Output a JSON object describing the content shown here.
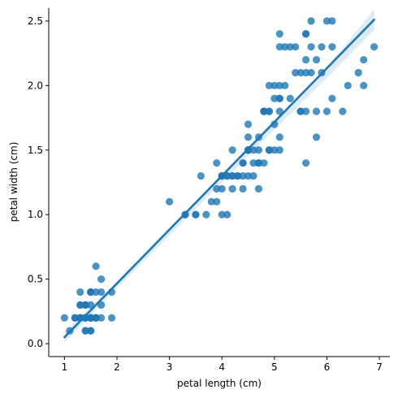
{
  "chart_data": {
    "type": "scatter",
    "title": "",
    "xlabel": "petal length (cm)",
    "ylabel": "petal width (cm)",
    "xlim": [
      0.7,
      7.2
    ],
    "ylim": [
      -0.1,
      2.6
    ],
    "xticks": [
      1,
      2,
      3,
      4,
      5,
      6,
      7
    ],
    "yticks": [
      0.0,
      0.5,
      1.0,
      1.5,
      2.0,
      2.5
    ],
    "xtick_labels": [
      "1",
      "2",
      "3",
      "4",
      "5",
      "6",
      "7"
    ],
    "ytick_labels": [
      "0.0",
      "0.5",
      "1.0",
      "1.5",
      "2.0",
      "2.5"
    ],
    "grid": false,
    "colors": {
      "points": "#1f77b4",
      "regression_line": "#1f77b4",
      "confidence_band": "#1f77b4"
    },
    "regression": {
      "x": [
        1.0,
        6.9
      ],
      "y": [
        0.05,
        2.51
      ]
    },
    "confidence_band": {
      "x": [
        1.0,
        2.0,
        3.0,
        4.0,
        5.0,
        6.0,
        6.9
      ],
      "upper": [
        0.09,
        0.48,
        0.88,
        1.29,
        1.71,
        2.14,
        2.59
      ],
      "lower": [
        0.01,
        0.43,
        0.84,
        1.25,
        1.66,
        2.06,
        2.43
      ]
    },
    "points": [
      [
        1.4,
        0.2
      ],
      [
        1.4,
        0.2
      ],
      [
        1.3,
        0.2
      ],
      [
        1.5,
        0.2
      ],
      [
        1.4,
        0.2
      ],
      [
        1.7,
        0.4
      ],
      [
        1.4,
        0.3
      ],
      [
        1.5,
        0.2
      ],
      [
        1.4,
        0.2
      ],
      [
        1.5,
        0.1
      ],
      [
        1.5,
        0.2
      ],
      [
        1.6,
        0.2
      ],
      [
        1.4,
        0.1
      ],
      [
        1.1,
        0.1
      ],
      [
        1.2,
        0.2
      ],
      [
        1.5,
        0.4
      ],
      [
        1.3,
        0.4
      ],
      [
        1.4,
        0.3
      ],
      [
        1.7,
        0.3
      ],
      [
        1.5,
        0.3
      ],
      [
        1.7,
        0.2
      ],
      [
        1.5,
        0.4
      ],
      [
        1.0,
        0.2
      ],
      [
        1.7,
        0.5
      ],
      [
        1.9,
        0.2
      ],
      [
        1.6,
        0.2
      ],
      [
        1.6,
        0.4
      ],
      [
        1.5,
        0.2
      ],
      [
        1.4,
        0.2
      ],
      [
        1.6,
        0.2
      ],
      [
        1.6,
        0.2
      ],
      [
        1.5,
        0.4
      ],
      [
        1.5,
        0.1
      ],
      [
        1.4,
        0.2
      ],
      [
        1.5,
        0.2
      ],
      [
        1.2,
        0.2
      ],
      [
        1.3,
        0.2
      ],
      [
        1.4,
        0.1
      ],
      [
        1.3,
        0.2
      ],
      [
        1.5,
        0.2
      ],
      [
        1.3,
        0.3
      ],
      [
        1.3,
        0.3
      ],
      [
        1.3,
        0.2
      ],
      [
        1.6,
        0.6
      ],
      [
        1.9,
        0.4
      ],
      [
        1.4,
        0.3
      ],
      [
        1.6,
        0.2
      ],
      [
        1.4,
        0.2
      ],
      [
        1.5,
        0.2
      ],
      [
        1.4,
        0.2
      ],
      [
        4.7,
        1.4
      ],
      [
        4.5,
        1.5
      ],
      [
        4.9,
        1.5
      ],
      [
        4.0,
        1.3
      ],
      [
        4.6,
        1.5
      ],
      [
        4.5,
        1.3
      ],
      [
        4.7,
        1.6
      ],
      [
        3.3,
        1.0
      ],
      [
        4.6,
        1.3
      ],
      [
        3.9,
        1.4
      ],
      [
        3.5,
        1.0
      ],
      [
        4.2,
        1.5
      ],
      [
        4.0,
        1.0
      ],
      [
        4.7,
        1.4
      ],
      [
        3.6,
        1.3
      ],
      [
        4.4,
        1.4
      ],
      [
        4.5,
        1.5
      ],
      [
        4.1,
        1.0
      ],
      [
        4.5,
        1.5
      ],
      [
        3.9,
        1.1
      ],
      [
        4.8,
        1.8
      ],
      [
        4.0,
        1.3
      ],
      [
        4.9,
        1.5
      ],
      [
        4.7,
        1.2
      ],
      [
        4.3,
        1.3
      ],
      [
        4.4,
        1.4
      ],
      [
        4.8,
        1.4
      ],
      [
        5.0,
        1.7
      ],
      [
        4.5,
        1.5
      ],
      [
        3.5,
        1.0
      ],
      [
        3.8,
        1.1
      ],
      [
        3.7,
        1.0
      ],
      [
        3.9,
        1.2
      ],
      [
        5.1,
        1.6
      ],
      [
        4.5,
        1.5
      ],
      [
        4.5,
        1.6
      ],
      [
        4.7,
        1.5
      ],
      [
        4.4,
        1.3
      ],
      [
        4.1,
        1.3
      ],
      [
        4.0,
        1.3
      ],
      [
        4.4,
        1.2
      ],
      [
        4.6,
        1.4
      ],
      [
        4.0,
        1.2
      ],
      [
        3.3,
        1.0
      ],
      [
        4.2,
        1.3
      ],
      [
        4.2,
        1.2
      ],
      [
        4.2,
        1.3
      ],
      [
        4.3,
        1.3
      ],
      [
        3.0,
        1.1
      ],
      [
        4.1,
        1.3
      ],
      [
        6.0,
        2.5
      ],
      [
        5.1,
        1.9
      ],
      [
        5.9,
        2.1
      ],
      [
        5.6,
        1.8
      ],
      [
        5.8,
        2.2
      ],
      [
        6.6,
        2.1
      ],
      [
        4.5,
        1.7
      ],
      [
        6.3,
        1.8
      ],
      [
        5.8,
        1.8
      ],
      [
        6.1,
        2.5
      ],
      [
        5.1,
        2.0
      ],
      [
        5.3,
        1.9
      ],
      [
        5.5,
        2.1
      ],
      [
        5.0,
        2.0
      ],
      [
        5.1,
        2.4
      ],
      [
        5.3,
        2.3
      ],
      [
        5.5,
        1.8
      ],
      [
        6.7,
        2.2
      ],
      [
        6.9,
        2.3
      ],
      [
        5.0,
        1.5
      ],
      [
        5.7,
        2.3
      ],
      [
        4.9,
        2.0
      ],
      [
        6.7,
        2.0
      ],
      [
        4.9,
        1.8
      ],
      [
        5.7,
        2.1
      ],
      [
        6.0,
        1.8
      ],
      [
        4.8,
        1.8
      ],
      [
        4.9,
        1.8
      ],
      [
        5.6,
        2.1
      ],
      [
        5.8,
        1.6
      ],
      [
        6.1,
        1.9
      ],
      [
        6.4,
        2.0
      ],
      [
        5.6,
        2.2
      ],
      [
        5.1,
        1.5
      ],
      [
        5.6,
        1.4
      ],
      [
        6.1,
        2.3
      ],
      [
        5.6,
        2.4
      ],
      [
        5.5,
        1.8
      ],
      [
        4.8,
        1.8
      ],
      [
        5.4,
        2.1
      ],
      [
        5.6,
        2.4
      ],
      [
        5.1,
        2.3
      ],
      [
        5.1,
        1.9
      ],
      [
        5.9,
        2.3
      ],
      [
        5.7,
        2.5
      ],
      [
        5.2,
        2.3
      ],
      [
        5.0,
        1.9
      ],
      [
        5.2,
        2.0
      ],
      [
        5.4,
        2.3
      ],
      [
        5.1,
        1.8
      ]
    ]
  }
}
